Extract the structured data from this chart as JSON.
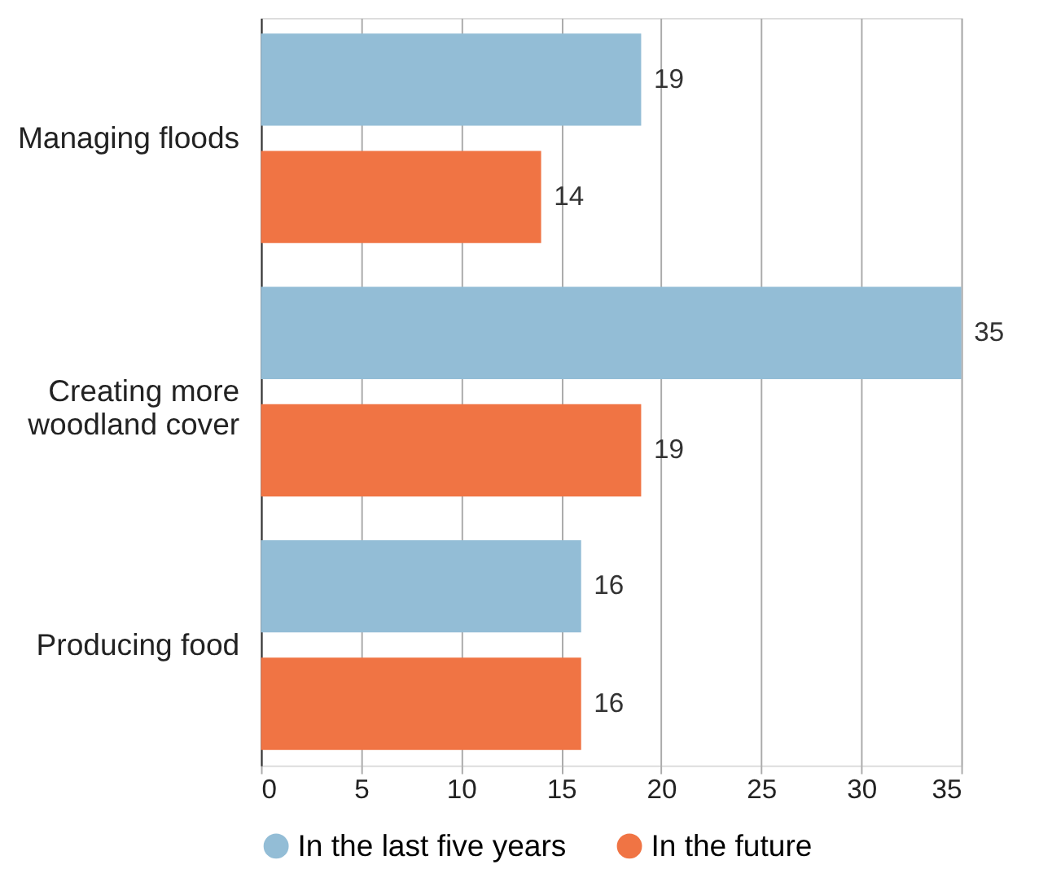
{
  "chart_data": {
    "type": "bar",
    "orientation": "horizontal",
    "categories": [
      "Managing floods",
      "Creating more woodland cover",
      "Producing food"
    ],
    "series": [
      {
        "name": "In the last five years",
        "color": "#93bdd6",
        "values": [
          19,
          35,
          16
        ]
      },
      {
        "name": "In the future",
        "color": "#f07444",
        "values": [
          14,
          19,
          16
        ]
      }
    ],
    "xlim": [
      0,
      35
    ],
    "xticks": [
      0,
      5,
      10,
      15,
      20,
      25,
      30,
      35
    ],
    "grid": "x",
    "legend": "bottom",
    "data_labels": true
  }
}
